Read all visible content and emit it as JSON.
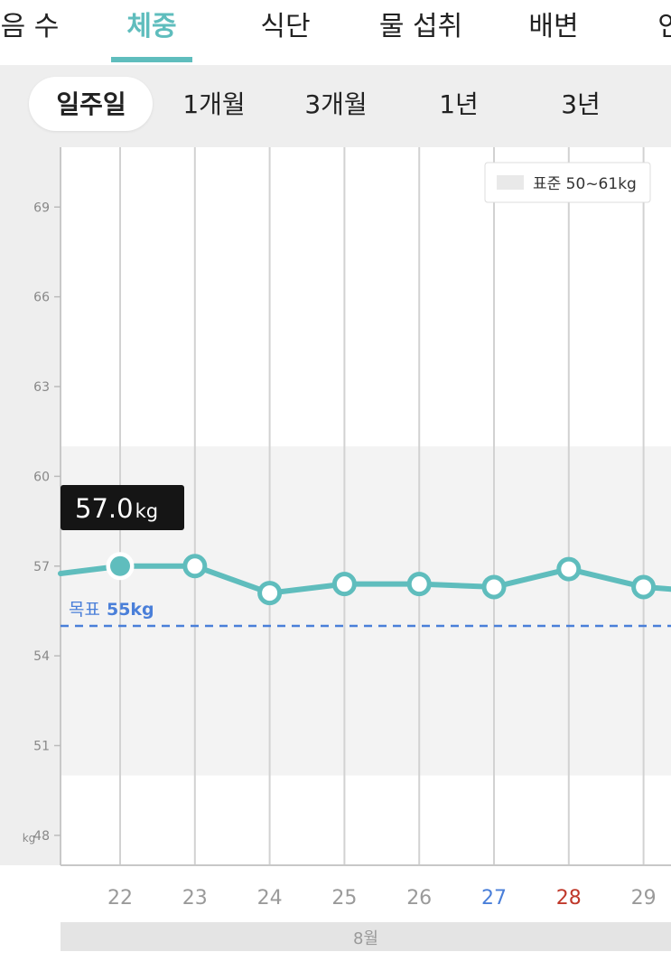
{
  "top_tabs": [
    {
      "label": "음 수",
      "active": false
    },
    {
      "label": "체중",
      "active": true
    },
    {
      "label": "식단",
      "active": false
    },
    {
      "label": "물 섭취",
      "active": false
    },
    {
      "label": "배변",
      "active": false
    },
    {
      "label": "인",
      "active": false
    }
  ],
  "periods": [
    {
      "label": "일주일",
      "active": true
    },
    {
      "label": "1개월",
      "active": false
    },
    {
      "label": "3개월",
      "active": false
    },
    {
      "label": "1년",
      "active": false
    },
    {
      "label": "3년",
      "active": false
    }
  ],
  "legend": {
    "label": "표준 50~61kg"
  },
  "tooltip": {
    "value": "57.0",
    "unit": "kg"
  },
  "goal": {
    "prefix": "목표",
    "value": "55kg"
  },
  "y_unit": "kg",
  "month_label": "8월",
  "colors": {
    "accent": "#5fbdbd",
    "goal": "#4a7fd9",
    "saturday": "#4a7fd9",
    "sunday": "#c0392b",
    "band": "#f3f3f3"
  },
  "chart_data": {
    "type": "line",
    "x": [
      "22",
      "23",
      "24",
      "25",
      "26",
      "27",
      "28",
      "29"
    ],
    "values": [
      57.0,
      57.0,
      56.1,
      56.4,
      56.4,
      56.3,
      56.9,
      56.3
    ],
    "yticks": [
      48,
      51,
      54,
      57,
      60,
      63,
      66,
      69
    ],
    "ylim": [
      47.0,
      71.0
    ],
    "ylabel": "kg",
    "standard_range": [
      50,
      61
    ],
    "goal": 55,
    "selected_index": 0
  }
}
